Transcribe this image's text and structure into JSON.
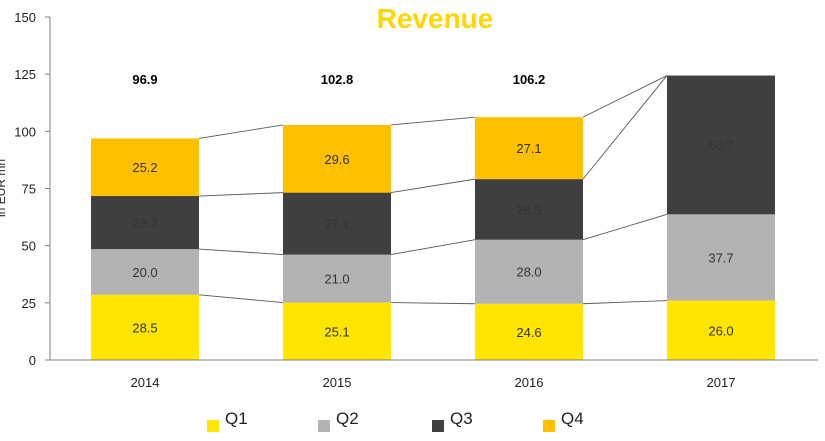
{
  "colors": {
    "title": "#FFD700",
    "Q1": "#FFE600",
    "Q2": "#B3B3B3",
    "Q3": "#3F3F3F",
    "Q4": "#FFC000",
    "connector": "#595959",
    "axis": "#7F7F7F"
  },
  "chart_data": {
    "type": "bar",
    "stacked": true,
    "title": "Revenue",
    "ylabel": "in EUR mn",
    "xlabel": "",
    "ylim": [
      0,
      150
    ],
    "yticks": [
      0,
      25,
      50,
      75,
      100,
      125,
      150
    ],
    "grid": false,
    "legend": "bottom",
    "categories": [
      "2014",
      "2015",
      "2016",
      "2017"
    ],
    "series": [
      {
        "name": "Q1",
        "values": [
          28.5,
          25.1,
          24.6,
          26.0
        ]
      },
      {
        "name": "Q2",
        "values": [
          20.0,
          21.0,
          28.0,
          37.7
        ]
      },
      {
        "name": "Q3",
        "values": [
          23.2,
          27.1,
          26.5,
          60.7
        ]
      },
      {
        "name": "Q4",
        "values": [
          25.2,
          29.6,
          27.1,
          null
        ]
      }
    ],
    "totals": [
      "96.9",
      "102.8",
      "106.2",
      ""
    ]
  }
}
